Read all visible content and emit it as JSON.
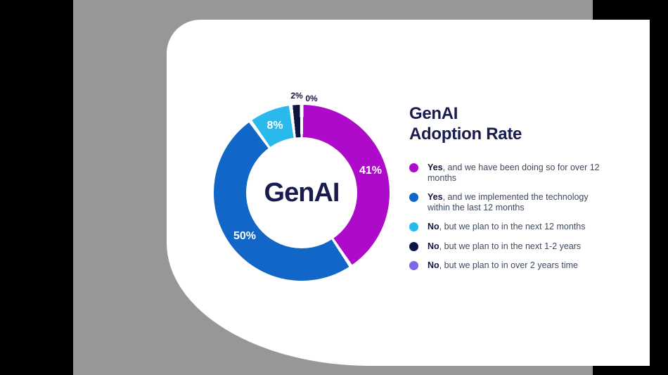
{
  "slide": {
    "page_background_color": "#000000",
    "panel_background_color": "#979797",
    "card_background_color": "#ffffff",
    "title_text_color": "#191b4f",
    "legend_text_color": "#3e4a60"
  },
  "title": {
    "line1": "GenAI",
    "line2": "Adoption Rate"
  },
  "chart_data": {
    "type": "pie",
    "donut": true,
    "title": "GenAI Adoption Rate",
    "center_label": "GenAI",
    "legend_position": "right",
    "start_angle_deg": 0,
    "direction": "clockwise",
    "segments": [
      {
        "label": "Yes, and we have been doing so for over 12 months",
        "value": 41,
        "display": "41%",
        "color": "#ad0bc9"
      },
      {
        "label": "Yes, and we implemented the technology within the last 12 months",
        "value": 50,
        "display": "50%",
        "color": "#1166c8"
      },
      {
        "label": "No, but we plan to in the next 12 months",
        "value": 8,
        "display": "8%",
        "color": "#29b9ec"
      },
      {
        "label": "No, but we plan to in the next 1-2 years",
        "value": 2,
        "display": "2%",
        "color": "#0d1540"
      },
      {
        "label": "No, but we plan to in over 2 years time",
        "value": 0,
        "display": "0%",
        "color": "#7a68e6"
      }
    ]
  },
  "legend": {
    "items": [
      {
        "bold": "Yes",
        "rest": ", and we have been doing so for over 12 months",
        "color": "#ad0bc9"
      },
      {
        "bold": "Yes",
        "rest": ", and we implemented the technology within the last 12 months",
        "color": "#1166c8"
      },
      {
        "bold": "No",
        "rest": ", but we plan to in the next 12 months",
        "color": "#29b9ec"
      },
      {
        "bold": "No",
        "rest": ", but we plan to in the next 1-2 years",
        "color": "#0d1540"
      },
      {
        "bold": "No",
        "rest": ", but we plan to in over 2 years time",
        "color": "#7a68e6"
      }
    ]
  }
}
